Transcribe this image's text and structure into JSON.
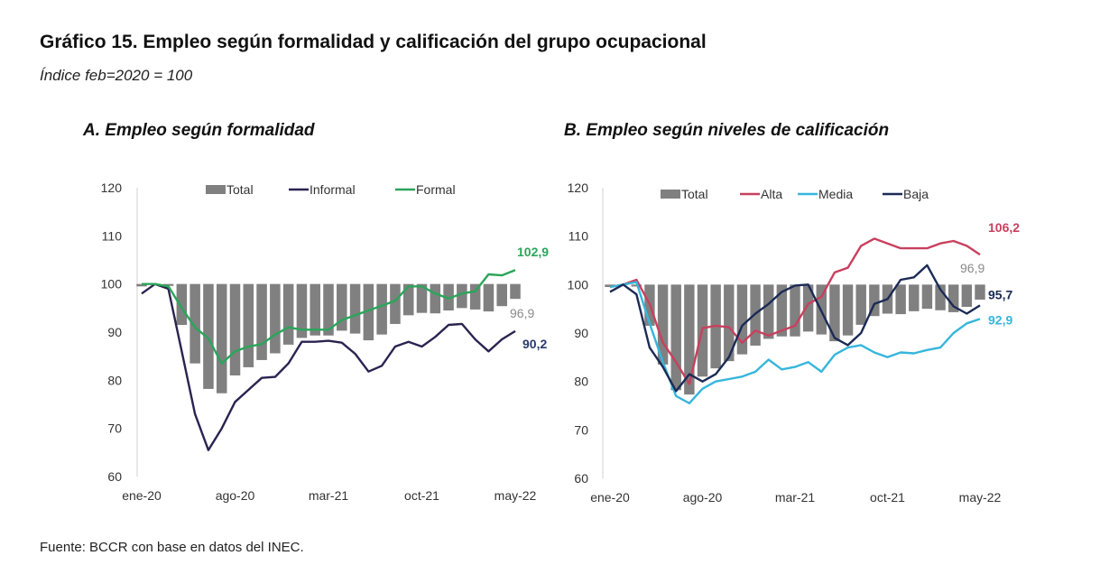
{
  "title": "Gráfico 15. Empleo según formalidad y calificación del grupo ocupacional",
  "subtitle": "Índice feb=2020 = 100",
  "source": "Fuente: BCCR con base en datos del INEC.",
  "chart_data": [
    {
      "type": "bar+line",
      "title": "A.   Empleo según formalidad",
      "ylim": [
        60,
        120
      ],
      "yticks": [
        "60",
        "70",
        "80",
        "90",
        "100",
        "110",
        "120"
      ],
      "xtick_labels": [
        "ene-20",
        "ago-20",
        "mar-21",
        "oct-21",
        "may-22"
      ],
      "x": [
        "ene-20",
        "feb-20",
        "mar-20",
        "abr-20",
        "may-20",
        "jun-20",
        "jul-20",
        "ago-20",
        "sep-20",
        "oct-20",
        "nov-20",
        "dic-20",
        "ene-21",
        "feb-21",
        "mar-21",
        "abr-21",
        "may-21",
        "jun-21",
        "jul-21",
        "ago-21",
        "sep-21",
        "oct-21",
        "nov-21",
        "dic-21",
        "ene-22",
        "feb-22",
        "mar-22",
        "abr-22",
        "may-22"
      ],
      "bar_base": 100,
      "legend": "top",
      "series": [
        {
          "name": "Total",
          "kind": "bar",
          "color": "#808080",
          "values": [
            99.5,
            100,
            99.6,
            91.5,
            83.5,
            78.2,
            77.3,
            81,
            82.7,
            84.2,
            85.6,
            87.4,
            88.8,
            89.3,
            89.3,
            90.3,
            89.7,
            88.3,
            89.5,
            91.7,
            93.5,
            94,
            93.9,
            94.5,
            95,
            94.7,
            94.3,
            95.4,
            96.9
          ],
          "end_label": "96,9"
        },
        {
          "name": "Informal",
          "kind": "line",
          "color": "#2b2350",
          "values": [
            98,
            100,
            99,
            86,
            73,
            65.5,
            70,
            75.5,
            78,
            80.5,
            80.7,
            83.5,
            88,
            88,
            88.2,
            87.8,
            85.5,
            81.8,
            83,
            87,
            88,
            87,
            89,
            91.5,
            91.7,
            88.5,
            86,
            88.5,
            90.2
          ],
          "end_label": "90,2",
          "label_color": "#2b3a6b"
        },
        {
          "name": "Formal",
          "kind": "line",
          "color": "#2aa55a",
          "values": [
            100,
            100,
            99.5,
            95,
            91,
            88.7,
            83.5,
            86,
            87,
            87.5,
            89.5,
            91,
            90.5,
            90.5,
            90.5,
            92.5,
            93.5,
            94.5,
            95.5,
            96.5,
            99.5,
            99.5,
            98,
            97,
            98,
            98.5,
            102,
            101.8,
            102.9
          ],
          "end_label": "102,9",
          "label_color": "#2aa55a"
        }
      ]
    },
    {
      "type": "bar+line",
      "title": "B. Empleo según niveles de calificación",
      "ylim": [
        60,
        120
      ],
      "yticks": [
        "60",
        "70",
        "80",
        "90",
        "100",
        "110",
        "120"
      ],
      "xtick_labels": [
        "ene-20",
        "ago-20",
        "mar-21",
        "oct-21",
        "may-22"
      ],
      "x": [
        "ene-20",
        "feb-20",
        "mar-20",
        "abr-20",
        "may-20",
        "jun-20",
        "jul-20",
        "ago-20",
        "sep-20",
        "oct-20",
        "nov-20",
        "dic-20",
        "ene-21",
        "feb-21",
        "mar-21",
        "abr-21",
        "may-21",
        "jun-21",
        "jul-21",
        "ago-21",
        "sep-21",
        "oct-21",
        "nov-21",
        "dic-21",
        "ene-22",
        "feb-22",
        "mar-22",
        "abr-22",
        "may-22"
      ],
      "bar_base": 100,
      "legend": "top",
      "series": [
        {
          "name": "Total",
          "kind": "bar",
          "color": "#808080",
          "values": [
            99.5,
            100,
            99.6,
            91.5,
            83.5,
            78.2,
            77.3,
            81,
            82.7,
            84.2,
            85.6,
            87.4,
            88.8,
            89.3,
            89.3,
            90.3,
            89.7,
            88.3,
            89.5,
            91.7,
            93.5,
            94,
            93.9,
            94.5,
            95,
            94.7,
            94.3,
            95.4,
            96.9
          ],
          "end_label": "96,9"
        },
        {
          "name": "Alta",
          "kind": "line",
          "color": "#c8405e",
          "values": [
            99.5,
            100,
            101,
            96,
            88,
            84,
            79.5,
            91,
            91.5,
            91.2,
            88,
            90.5,
            89.5,
            90.5,
            91.5,
            96,
            97.5,
            102.5,
            103.5,
            108,
            109.5,
            108.5,
            107.5,
            107.5,
            107.5,
            108.5,
            109,
            108,
            106.2
          ],
          "end_label": "106,2",
          "label_color": "#c8405e"
        },
        {
          "name": "Media",
          "kind": "line",
          "color": "#36b6dc",
          "values": [
            99.5,
            100,
            100.5,
            92,
            84,
            77,
            75.5,
            78.5,
            80,
            80.5,
            81,
            82,
            84.5,
            82.5,
            83,
            84,
            82,
            85.5,
            87,
            87.5,
            86,
            85,
            86,
            85.8,
            86.5,
            87,
            90,
            92,
            92.9
          ],
          "end_label": "92,9",
          "label_color": "#36b6dc"
        },
        {
          "name": "Baja",
          "kind": "line",
          "color": "#1b2b55",
          "values": [
            98.5,
            100,
            98,
            87,
            83,
            78,
            81.5,
            80,
            81.5,
            85,
            91.5,
            94,
            96,
            98.5,
            99.8,
            100,
            94.5,
            89,
            87.5,
            90,
            96,
            97,
            101,
            101.5,
            104,
            99,
            95.5,
            94,
            95.7
          ],
          "end_label": "95,7",
          "label_color": "#1b2b55"
        }
      ]
    }
  ]
}
